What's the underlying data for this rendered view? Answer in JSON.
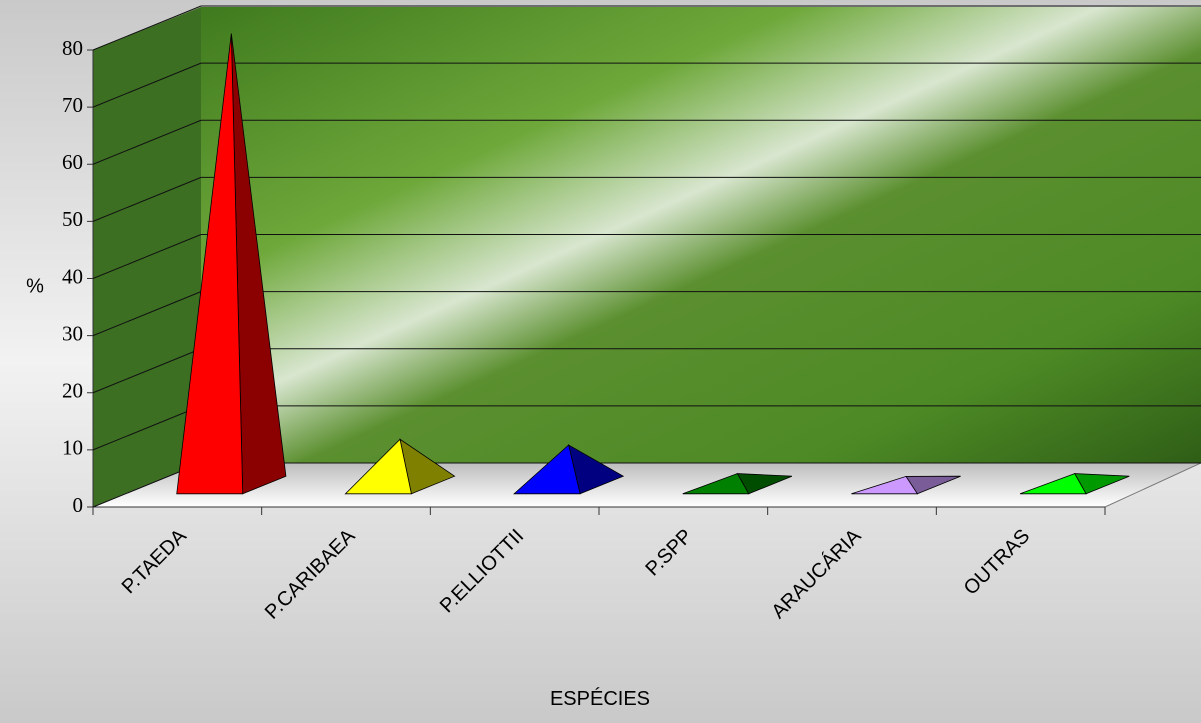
{
  "chart_data": {
    "type": "pyramid3d",
    "y_label": "%",
    "x_label": "ESPÉCIES",
    "categories": [
      "P.TAEDA",
      "P.CARIBAEA",
      "P.ELLIOTTII",
      "P.SPP",
      "ARAUCÁRIA",
      "OUTRAS"
    ],
    "values": [
      79,
      8,
      7,
      2,
      1.5,
      2
    ],
    "colors": [
      "#ff0000",
      "#ffff00",
      "#0000ff",
      "#008000",
      "#cc99ff",
      "#00ff00"
    ],
    "shade_colors": [
      "#8b0000",
      "#808000",
      "#000080",
      "#004d00",
      "#7a5c99",
      "#009900"
    ],
    "ylim": [
      0,
      80
    ],
    "yticks": [
      0,
      10,
      20,
      30,
      40,
      50,
      60,
      70,
      80
    ],
    "grid": true
  }
}
